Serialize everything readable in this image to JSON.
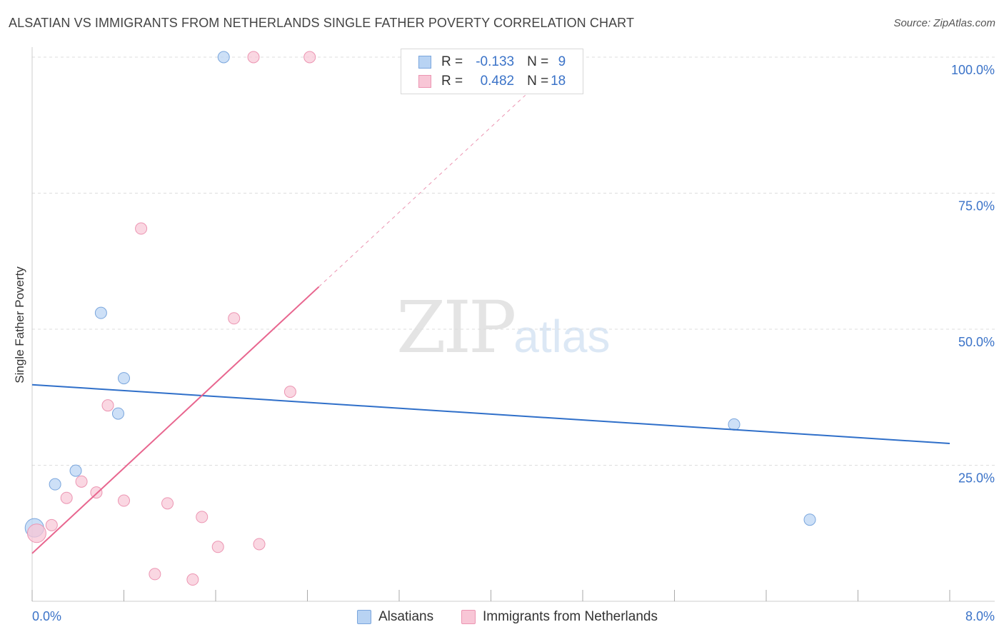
{
  "title": "ALSATIAN VS IMMIGRANTS FROM NETHERLANDS SINGLE FATHER POVERTY CORRELATION CHART",
  "source": "Source: ZipAtlas.com",
  "watermark": {
    "zip": "ZIP",
    "atlas": "atlas"
  },
  "legend": {
    "rows": [
      {
        "r_label": "R = ",
        "r_value": "-0.133",
        "n_label": "N = ",
        "n_value": "9"
      },
      {
        "r_label": "R = ",
        "r_value": "0.482",
        "n_label": "N = ",
        "n_value": "18"
      }
    ]
  },
  "bottom_legend": [
    "Alsatians",
    "Immigrants from Netherlands"
  ],
  "colors": {
    "blue_fill": "#b8d3f3",
    "blue_stroke": "#7aa6dd",
    "blue_line": "#2f6fc9",
    "pink_fill": "#f8c6d6",
    "pink_stroke": "#ec95b2",
    "pink_line": "#e8668f",
    "tick_label": "#3b73c8",
    "grid": "#dddddd"
  },
  "chart_data": {
    "type": "scatter",
    "title": "ALSATIAN VS IMMIGRANTS FROM NETHERLANDS SINGLE FATHER POVERTY CORRELATION CHART",
    "xlabel": "",
    "ylabel": "Single Father Poverty",
    "xlim": [
      0,
      8
    ],
    "ylim": [
      0,
      100
    ],
    "x_tick_labels": [
      "0.0%",
      "8.0%"
    ],
    "y_ticks": [
      25,
      50,
      75,
      100
    ],
    "y_tick_labels": [
      "25.0%",
      "50.0%",
      "75.0%",
      "100.0%"
    ],
    "series": [
      {
        "name": "Alsatians",
        "color": "blue",
        "points": [
          {
            "x": 0.02,
            "y": 13.5,
            "big": true
          },
          {
            "x": 0.2,
            "y": 21.5
          },
          {
            "x": 0.38,
            "y": 24.0
          },
          {
            "x": 0.6,
            "y": 53.0
          },
          {
            "x": 0.75,
            "y": 34.5
          },
          {
            "x": 0.8,
            "y": 41.0
          },
          {
            "x": 1.67,
            "y": 100.0
          },
          {
            "x": 6.12,
            "y": 32.5
          },
          {
            "x": 6.78,
            "y": 15.0
          }
        ],
        "trend": {
          "x0": 0.0,
          "y0": 39.8,
          "x1": 8.0,
          "y1": 29.0
        }
      },
      {
        "name": "Immigrants from Netherlands",
        "color": "pink",
        "points": [
          {
            "x": 0.04,
            "y": 12.5,
            "big": true
          },
          {
            "x": 0.17,
            "y": 14.0
          },
          {
            "x": 0.3,
            "y": 19.0
          },
          {
            "x": 0.43,
            "y": 22.0
          },
          {
            "x": 0.56,
            "y": 20.0
          },
          {
            "x": 0.66,
            "y": 36.0
          },
          {
            "x": 0.8,
            "y": 18.5
          },
          {
            "x": 0.95,
            "y": 68.5
          },
          {
            "x": 1.07,
            "y": 5.0
          },
          {
            "x": 1.18,
            "y": 18.0
          },
          {
            "x": 1.4,
            "y": 4.0
          },
          {
            "x": 1.48,
            "y": 15.5
          },
          {
            "x": 1.62,
            "y": 10.0
          },
          {
            "x": 1.76,
            "y": 52.0
          },
          {
            "x": 1.93,
            "y": 100.0
          },
          {
            "x": 1.98,
            "y": 10.5
          },
          {
            "x": 2.25,
            "y": 38.5
          },
          {
            "x": 2.42,
            "y": 100.0
          }
        ],
        "trend": {
          "x0": 0.0,
          "y0": 8.8,
          "x1": 2.5,
          "y1": 57.8
        },
        "trend_dashed": {
          "x0": 2.5,
          "y0": 57.8,
          "x1": 4.3,
          "y1": 93.0
        }
      }
    ]
  }
}
